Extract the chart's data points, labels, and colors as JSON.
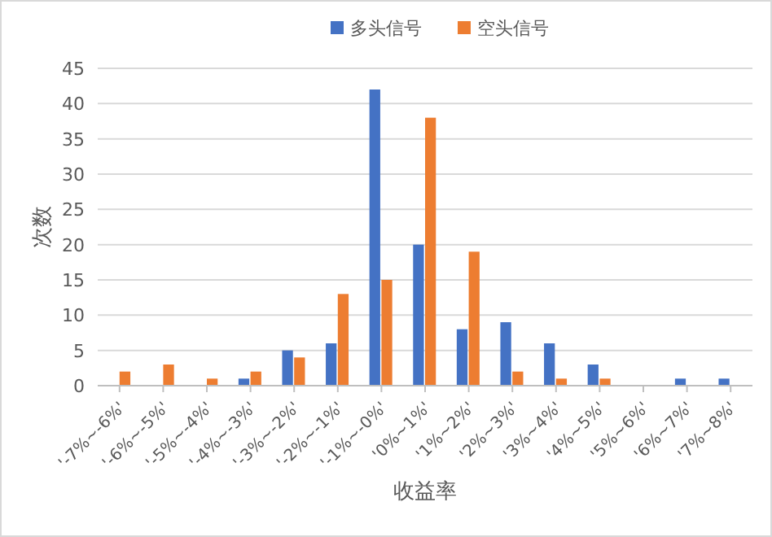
{
  "chart_data": {
    "type": "bar",
    "categories": [
      "'-7%~-6%'",
      "'-6%~-5%'",
      "'-5%~-4%'",
      "'-4%~-3%'",
      "'-3%~-2%'",
      "'-2%~-1%'",
      "'-1%~-0%'",
      "'0%~1%'",
      "'1%~2%'",
      "'2%~3%'",
      "'3%~4%'",
      "'4%~5%'",
      "'5%~6%'",
      "'6%~7%'",
      "'7%~8%'"
    ],
    "series": [
      {
        "name": "多头信号",
        "color": "#4472c4",
        "values": [
          0,
          0,
          0,
          1,
          5,
          6,
          42,
          20,
          8,
          9,
          6,
          3,
          0,
          1,
          1
        ]
      },
      {
        "name": "空头信号",
        "color": "#ed7d31",
        "values": [
          2,
          3,
          1,
          2,
          4,
          13,
          15,
          38,
          19,
          2,
          1,
          1,
          0,
          0,
          0
        ]
      }
    ],
    "xlabel": "收益率",
    "ylabel": "次数",
    "ylim": [
      0,
      45
    ],
    "yticks": [
      0,
      5,
      10,
      15,
      20,
      25,
      30,
      35,
      40,
      45
    ],
    "grid": "y",
    "legend": "top"
  }
}
